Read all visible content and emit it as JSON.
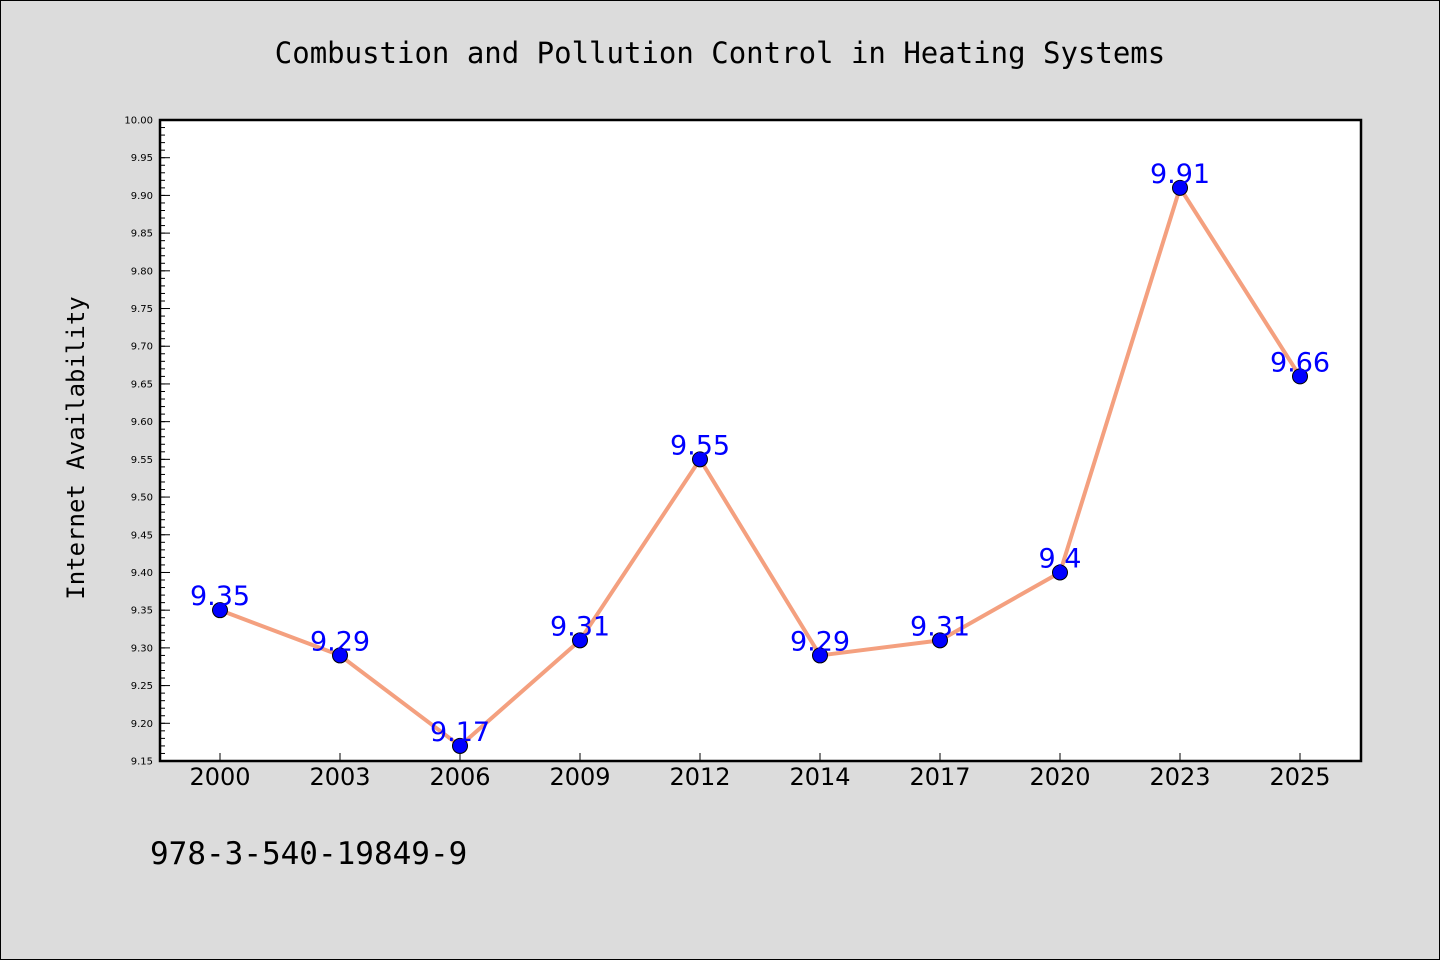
{
  "chart_data": {
    "type": "line",
    "title": "Combustion and Pollution Control in Heating Systems",
    "xlabel": "",
    "ylabel": "Internet Availability",
    "categories": [
      "2000",
      "2003",
      "2006",
      "2009",
      "2012",
      "2014",
      "2017",
      "2020",
      "2023",
      "2025"
    ],
    "series": [
      {
        "values": [
          9.35,
          9.29,
          9.17,
          9.31,
          9.55,
          9.29,
          9.31,
          9.4,
          9.91,
          9.66
        ],
        "labels": [
          "9.35",
          "9.29",
          "9.17",
          "9.31",
          "9.55",
          "9.29",
          "9.31",
          "9.4",
          "9.91",
          "9.66"
        ],
        "line_color": "#f4a07f",
        "marker_color": "#0000ff"
      }
    ],
    "ylim": [
      9.15,
      10.0
    ],
    "yticks": [
      "9.15",
      "9.20",
      "9.25",
      "9.30",
      "9.35",
      "9.40",
      "9.45",
      "9.50",
      "9.55",
      "9.60",
      "9.65",
      "9.70",
      "9.75",
      "9.80",
      "9.85",
      "9.90",
      "9.95",
      "10.00"
    ],
    "grid": false,
    "legend": "none"
  },
  "annotation": {
    "text": "978-3-540-19849-9"
  },
  "colors": {
    "background": "#dcdcdc",
    "plot_background": "#ffffff",
    "line": "#f4a07f",
    "marker": "#0000ff",
    "data_label": "#0000ff"
  }
}
